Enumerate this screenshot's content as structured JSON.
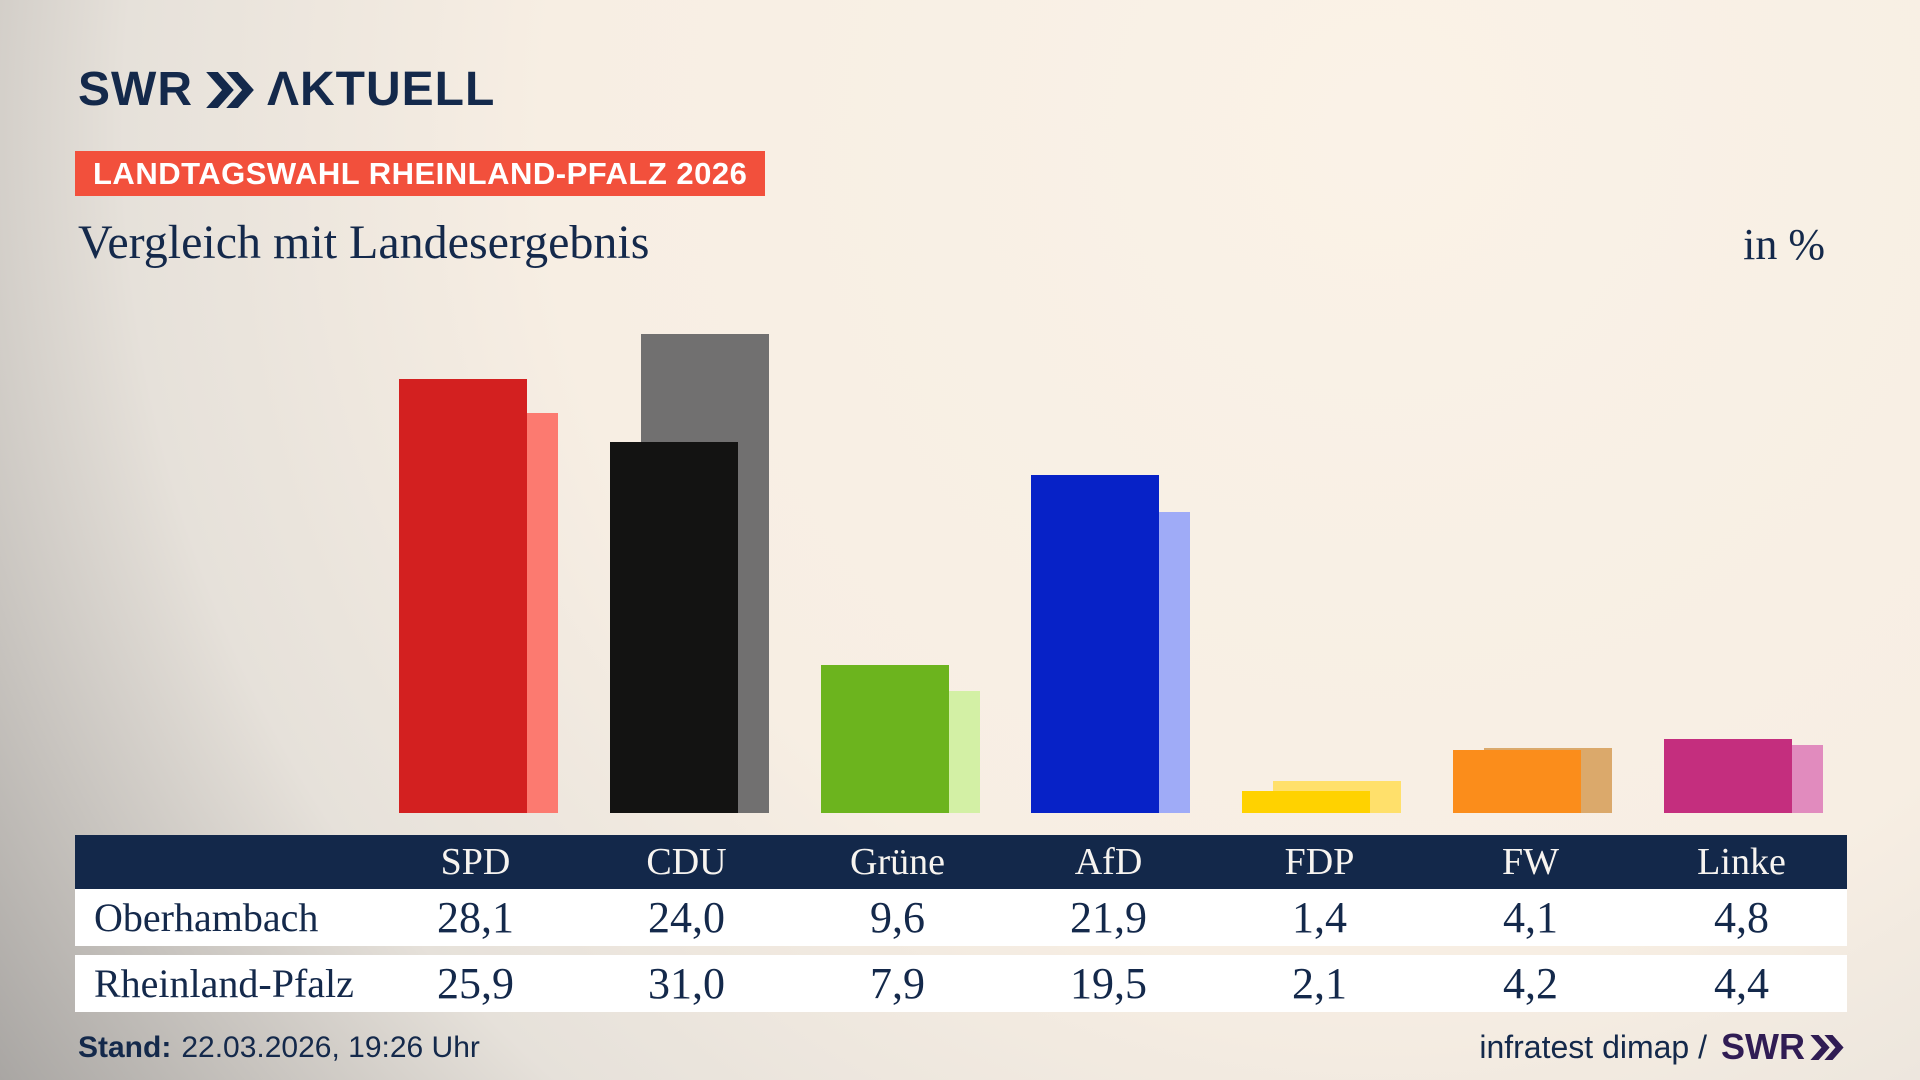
{
  "brand": {
    "logo_swr": "SWR",
    "logo_aktuell": "ΛKTUELL",
    "footer_logo": "SWR"
  },
  "header": {
    "badge": "LANDTAGSWAHL RHEINLAND-PFALZ 2026",
    "title": "Vergleich mit Landesergebnis",
    "unit": "in %"
  },
  "footer": {
    "stand_label": "Stand:",
    "stand_value": "22.03.2026, 19:26 Uhr",
    "source": "infratest dimap /"
  },
  "colors": {
    "navy": "#14294B",
    "table_header_bg": "#13284A",
    "badge_red": "#F2503C",
    "footer_logo_purple": "#301C54",
    "row_bg": "#FFFFFF"
  },
  "chart_data": {
    "type": "bar",
    "title": "Vergleich mit Landesergebnis",
    "unit": "in %",
    "categories": [
      "SPD",
      "CDU",
      "Grüne",
      "AfD",
      "FDP",
      "FW",
      "Linke"
    ],
    "series": [
      {
        "name": "Oberhambach",
        "values": [
          28.1,
          24.0,
          9.6,
          21.9,
          1.4,
          4.1,
          4.8
        ],
        "display": [
          "28,1",
          "24,0",
          "9,6",
          "21,9",
          "1,4",
          "4,1",
          "4,8"
        ],
        "colors": [
          "#D32020",
          "#131312",
          "#6CB41E",
          "#0722C7",
          "#FFD200",
          "#FB8D1B",
          "#C42E7E"
        ]
      },
      {
        "name": "Rheinland-Pfalz",
        "values": [
          25.9,
          31.0,
          7.9,
          19.5,
          2.1,
          4.2,
          4.4
        ],
        "display": [
          "25,9",
          "31,0",
          "7,9",
          "19,5",
          "2,1",
          "4,2",
          "4,4"
        ],
        "colors": [
          "#FC7A70",
          "#717070",
          "#D3F0A5",
          "#9FABF7",
          "#FFE06B",
          "#DBA96B",
          "#E18BBE"
        ]
      }
    ],
    "ylim": [
      0,
      31
    ],
    "grid": false,
    "legend_position": "table-below"
  }
}
